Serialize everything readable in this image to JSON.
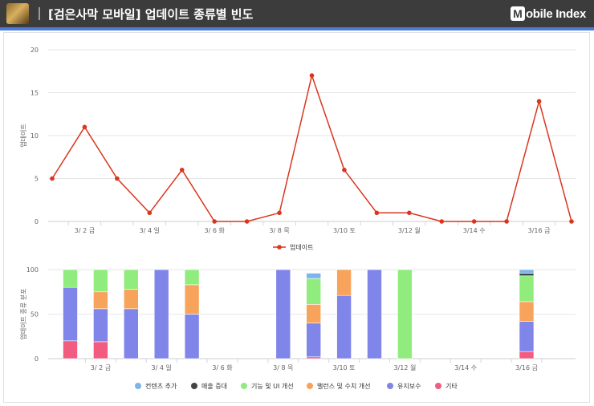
{
  "header": {
    "title": "[검은사막 모바일] 업데이트 종류별 빈도",
    "brand_m": "M",
    "brand_rest": "obile Index"
  },
  "colors": {
    "header_bg": "#3c3c3c",
    "accent": "#4d7bd8",
    "line": "#d9361e",
    "content_add": "#7cb5ec",
    "sales_increase": "#434348",
    "feature_ui": "#90ed7d",
    "balance": "#f7a35c",
    "maintenance": "#8085e9",
    "other": "#f15c80"
  },
  "chart_data": [
    {
      "type": "line",
      "ylabel": "업데이트",
      "ylim": [
        0,
        20
      ],
      "yticks": [
        0,
        5,
        10,
        15,
        20
      ],
      "x": [
        "3/1",
        "3/2",
        "3/3",
        "3/4",
        "3/5",
        "3/6",
        "3/7",
        "3/8",
        "3/9",
        "3/10",
        "3/11",
        "3/12",
        "3/13",
        "3/14",
        "3/15",
        "3/16",
        "3/17"
      ],
      "xtick_labels": [
        {
          "index": 1,
          "label": "3/ 2 금"
        },
        {
          "index": 3,
          "label": "3/ 4 일"
        },
        {
          "index": 5,
          "label": "3/ 6 화"
        },
        {
          "index": 7,
          "label": "3/ 8 목"
        },
        {
          "index": 9,
          "label": "3/10 토"
        },
        {
          "index": 11,
          "label": "3/12 월"
        },
        {
          "index": 13,
          "label": "3/14 수"
        },
        {
          "index": 15,
          "label": "3/16 금"
        }
      ],
      "series": [
        {
          "name": "업데이트",
          "values": [
            5,
            11,
            5,
            1,
            6,
            0,
            0,
            1,
            17,
            6,
            1,
            1,
            0,
            0,
            0,
            14,
            0
          ]
        }
      ],
      "legend": "bottom-center",
      "grid": true
    },
    {
      "type": "bar",
      "stacked": "percent",
      "ylabel": "업데이트 종류 분포",
      "ylim": [
        0,
        100
      ],
      "yticks": [
        0,
        50,
        100
      ],
      "categories": [
        "3/1",
        "3/2",
        "3/3",
        "3/4",
        "3/5",
        "3/6",
        "3/7",
        "3/8",
        "3/9",
        "3/10",
        "3/11",
        "3/12",
        "3/13",
        "3/14",
        "3/15",
        "3/16"
      ],
      "xtick_labels": [
        {
          "index": 1,
          "label": "3/ 2 금"
        },
        {
          "index": 3,
          "label": "3/ 4 일"
        },
        {
          "index": 5,
          "label": "3/ 6 화"
        },
        {
          "index": 7,
          "label": "3/ 8 목"
        },
        {
          "index": 9,
          "label": "3/10 토"
        },
        {
          "index": 11,
          "label": "3/12 월"
        },
        {
          "index": 13,
          "label": "3/14 수"
        },
        {
          "index": 15,
          "label": "3/16 금"
        }
      ],
      "series": [
        {
          "name": "컨텐츠 추가",
          "color": "#7cb5ec",
          "values": [
            0,
            0,
            0,
            0,
            0,
            0,
            0,
            0,
            6,
            0,
            0,
            0,
            0,
            0,
            0,
            4
          ]
        },
        {
          "name": "매출 증대",
          "color": "#434348",
          "values": [
            0,
            0,
            0,
            0,
            0,
            0,
            0,
            0,
            0,
            0,
            0,
            0,
            0,
            0,
            0,
            3
          ]
        },
        {
          "name": "기능 및 UI 개선",
          "color": "#90ed7d",
          "values": [
            20,
            25,
            22,
            0,
            17,
            0,
            0,
            0,
            29,
            0,
            0,
            100,
            0,
            0,
            0,
            29
          ]
        },
        {
          "name": "밸런스 및 수치 개선",
          "color": "#f7a35c",
          "values": [
            0,
            19,
            22,
            0,
            33,
            0,
            0,
            0,
            21,
            29,
            0,
            0,
            0,
            0,
            0,
            22
          ]
        },
        {
          "name": "유지보수",
          "color": "#8085e9",
          "values": [
            60,
            37,
            56,
            100,
            50,
            0,
            0,
            100,
            38,
            71,
            100,
            0,
            0,
            0,
            0,
            34
          ]
        },
        {
          "name": "기타",
          "color": "#f15c80",
          "values": [
            20,
            19,
            0,
            0,
            0,
            0,
            0,
            0,
            2,
            0,
            0,
            0,
            0,
            0,
            0,
            8
          ]
        }
      ],
      "legend": "bottom-center",
      "grid": true
    }
  ]
}
